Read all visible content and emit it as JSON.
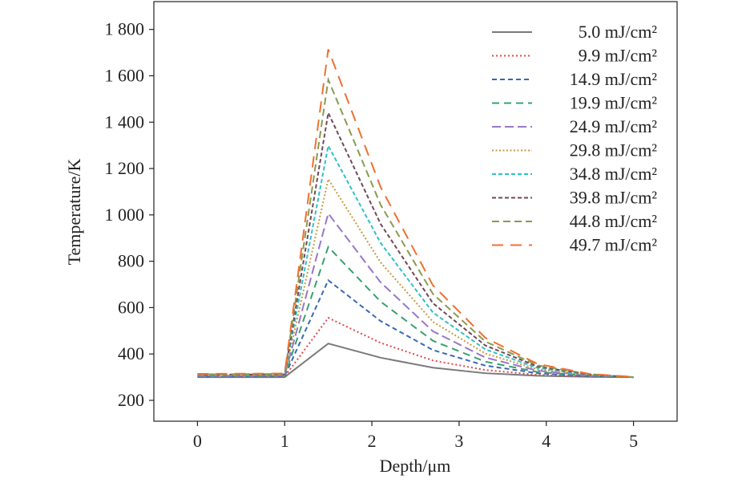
{
  "chart_data": {
    "type": "line",
    "title": "",
    "xlabel": "Depth/μm",
    "ylabel": "Temperature/K",
    "xlim": [
      -0.5,
      5.5
    ],
    "ylim": [
      110,
      1920
    ],
    "xticks": [
      0,
      1,
      2,
      3,
      4,
      5
    ],
    "xtick_labels": [
      "0",
      "1",
      "2",
      "3",
      "4",
      "5"
    ],
    "yticks": [
      200,
      400,
      600,
      800,
      1000,
      1200,
      1400,
      1600,
      1800
    ],
    "ytick_labels": [
      "200",
      "400",
      "600",
      "800",
      "1 000",
      "1 200",
      "1 400",
      "1 600",
      "1 800"
    ],
    "grid": false,
    "legend_position": "top-right",
    "x": [
      0,
      1,
      1.5,
      2.1,
      2.7,
      3.3,
      3.9,
      4.5,
      5
    ],
    "series": [
      {
        "name": "5.0 mJ/cm²",
        "color": "#7a7a7a",
        "dash": "",
        "values": [
          300,
          300,
          445,
          384,
          341,
          317,
          306,
          301,
          300
        ]
      },
      {
        "name": "9.9 mJ/cm²",
        "color": "#e04848",
        "dash": "2,3",
        "values": [
          302,
          302,
          556,
          448,
          372,
          331,
          310,
          303,
          300
        ]
      },
      {
        "name": "14.9 mJ/cm²",
        "color": "#3868b8",
        "dash": "6,4",
        "values": [
          303,
          304,
          718,
          542,
          417,
          350,
          317,
          304,
          300
        ]
      },
      {
        "name": "19.9 mJ/cm²",
        "color": "#38a070",
        "dash": "9,6",
        "values": [
          305,
          306,
          862,
          626,
          457,
          367,
          322,
          306,
          300
        ]
      },
      {
        "name": "24.9 mJ/cm²",
        "color": "#9878c8",
        "dash": "11,5",
        "values": [
          306,
          307,
          1006,
          709,
          498,
          385,
          328,
          307,
          300
        ]
      },
      {
        "name": "29.8 mJ/cm²",
        "color": "#c89a40",
        "dash": "2,2.5",
        "values": [
          308,
          309,
          1154,
          795,
          539,
          402,
          334,
          309,
          300
        ]
      },
      {
        "name": "34.8 mJ/cm²",
        "color": "#30c0c8",
        "dash": "5,3",
        "values": [
          309,
          311,
          1298,
          879,
          579,
          420,
          340,
          310,
          300
        ]
      },
      {
        "name": "39.8 mJ/cm²",
        "color": "#704858",
        "dash": "5,3",
        "values": [
          311,
          312,
          1440,
          961,
          619,
          437,
          346,
          311,
          300
        ]
      },
      {
        "name": "44.8 mJ/cm²",
        "color": "#8a9a50",
        "dash": "9,5",
        "values": [
          312,
          314,
          1583,
          1044,
          659,
          454,
          351,
          313,
          300
        ]
      },
      {
        "name": "49.7 mJ/cm²",
        "color": "#f07030",
        "dash": "14,9",
        "values": [
          314,
          316,
          1714,
          1120,
          696,
          470,
          357,
          314,
          301
        ]
      }
    ]
  }
}
